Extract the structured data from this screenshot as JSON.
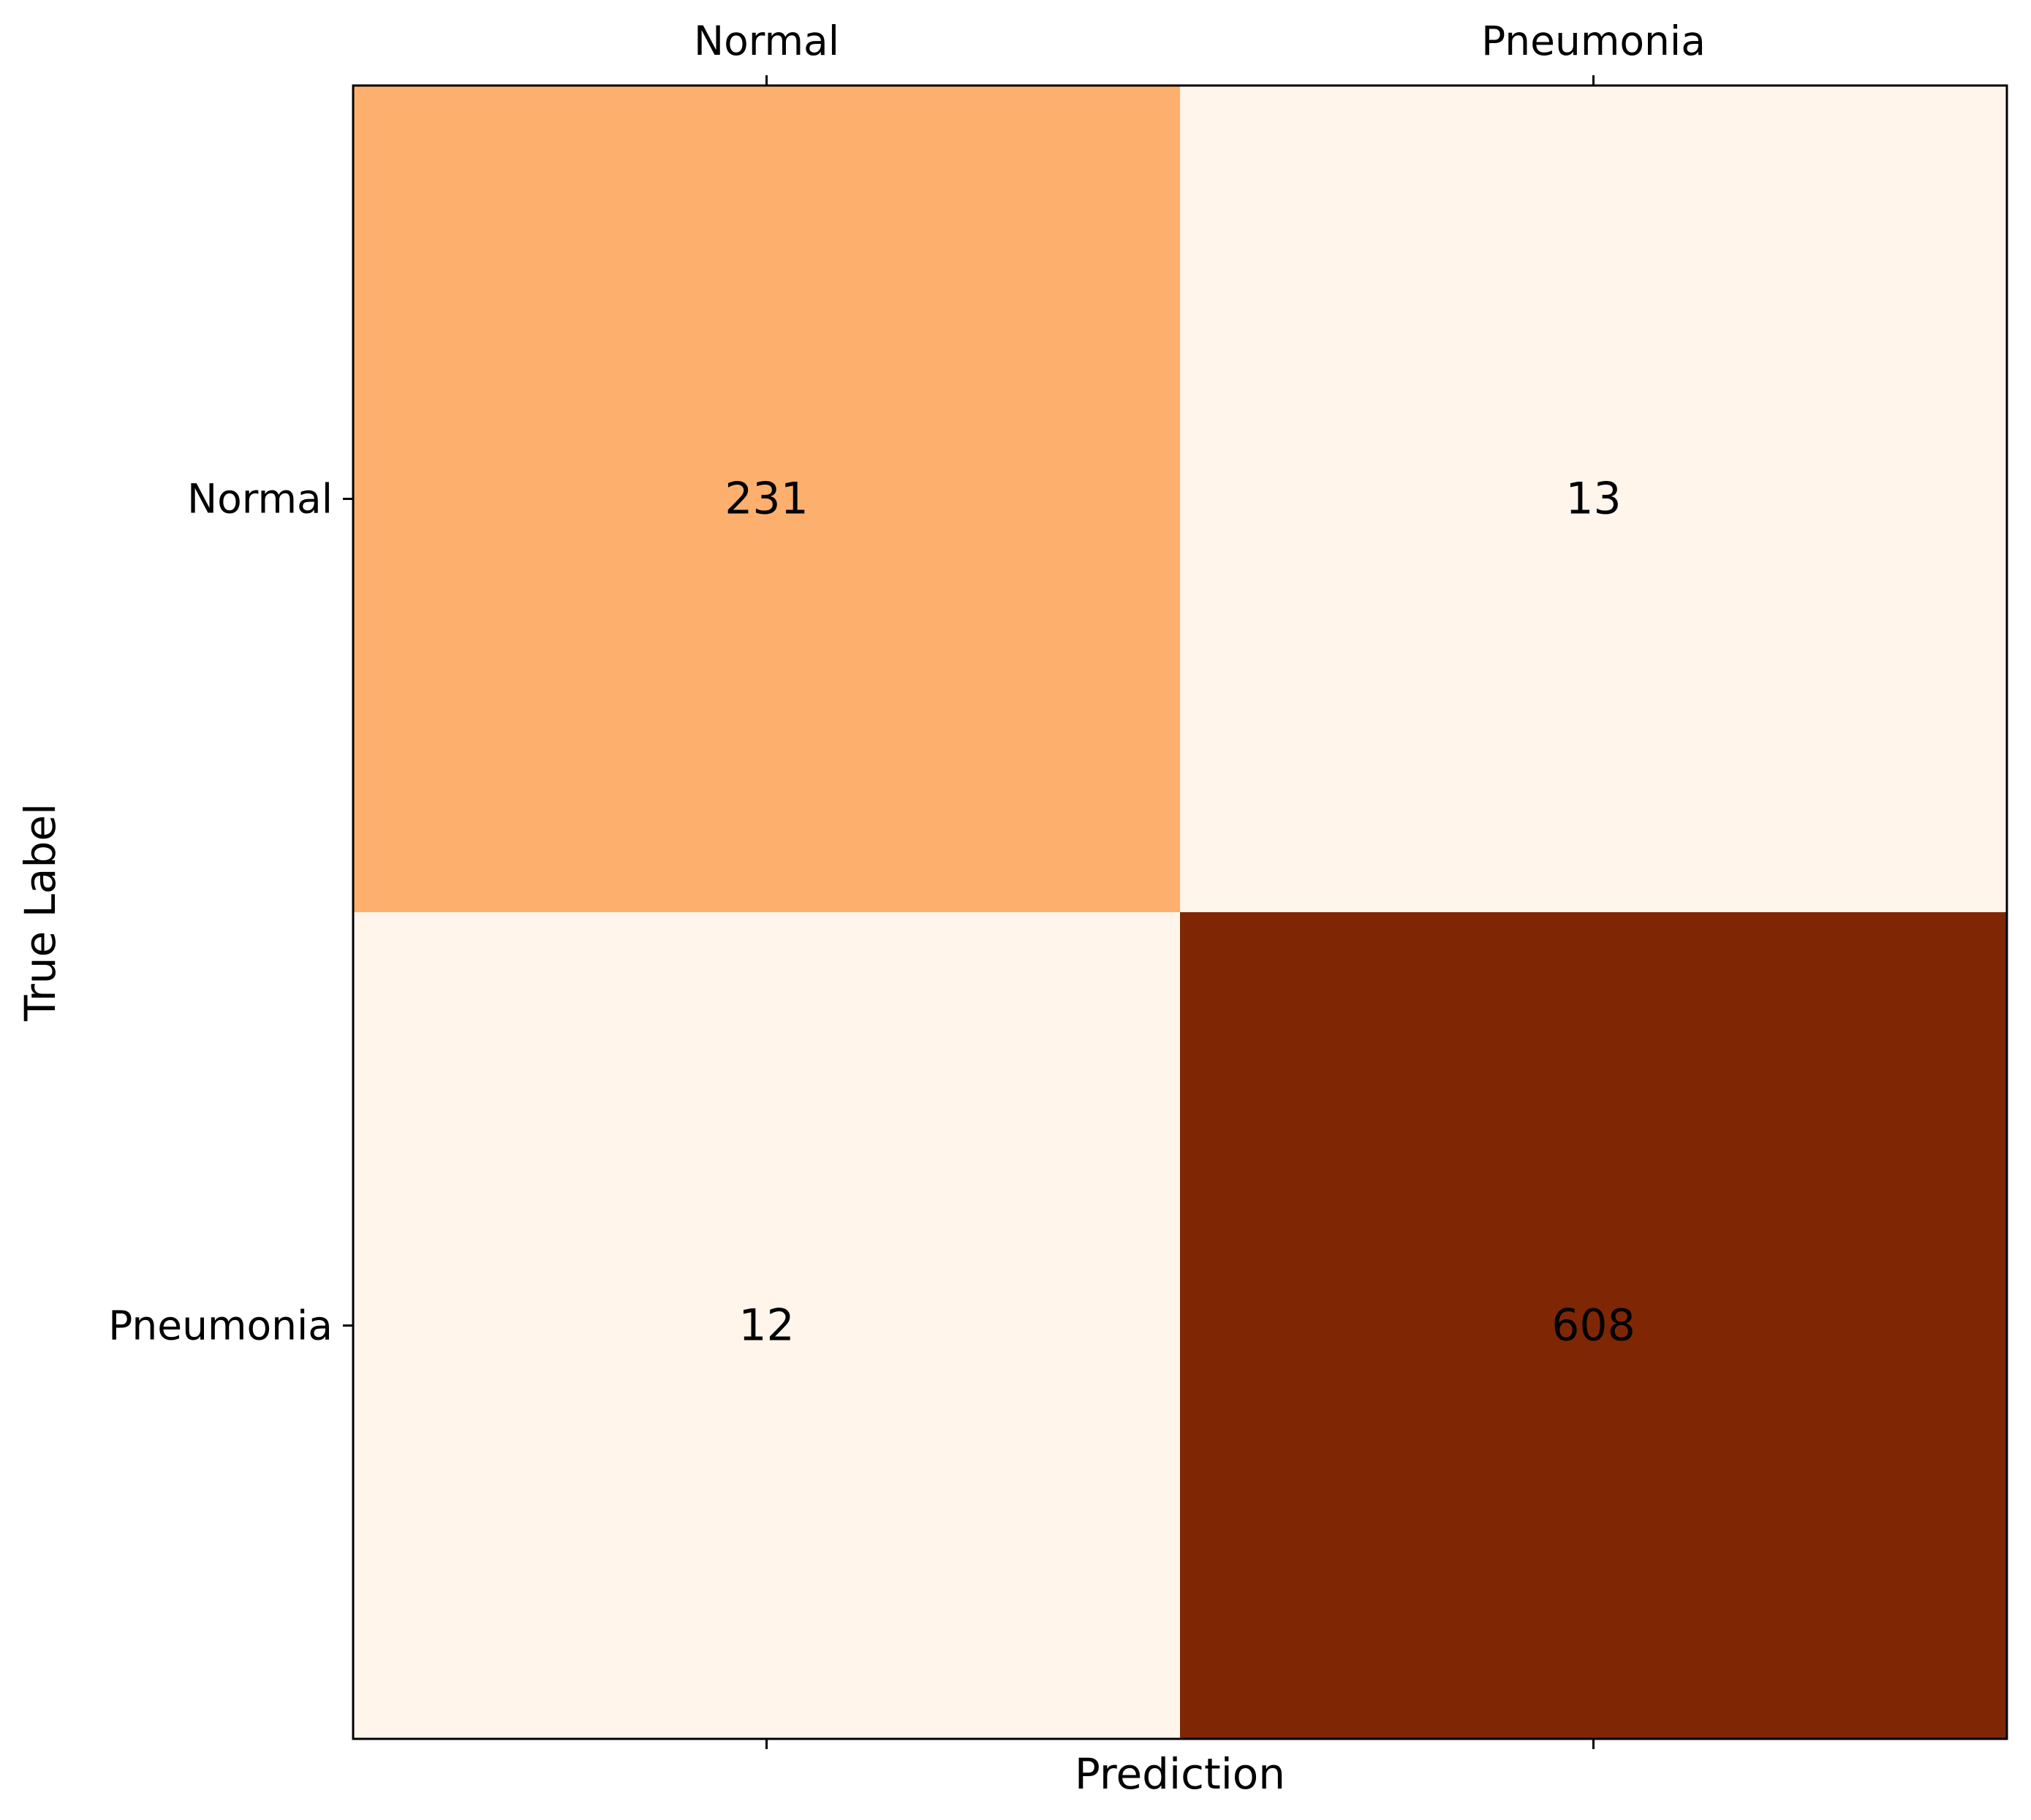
{
  "chart_data": {
    "type": "heatmap",
    "x_categories": [
      "Normal",
      "Pneumonia"
    ],
    "y_categories": [
      "Normal",
      "Pneumonia"
    ],
    "matrix": [
      [
        231,
        13
      ],
      [
        12,
        608
      ]
    ],
    "xlabel": "Prediction",
    "ylabel": "True Label",
    "x_tick_position": "top",
    "grid": false,
    "colormap": "Oranges",
    "cell_colors": [
      [
        "#fdb06e",
        "#fff5eb"
      ],
      [
        "#fff5eb",
        "#7f2704"
      ]
    ],
    "cell_text_colors": [
      [
        "#000000",
        "#000000"
      ],
      [
        "#000000",
        "#000000"
      ]
    ]
  }
}
